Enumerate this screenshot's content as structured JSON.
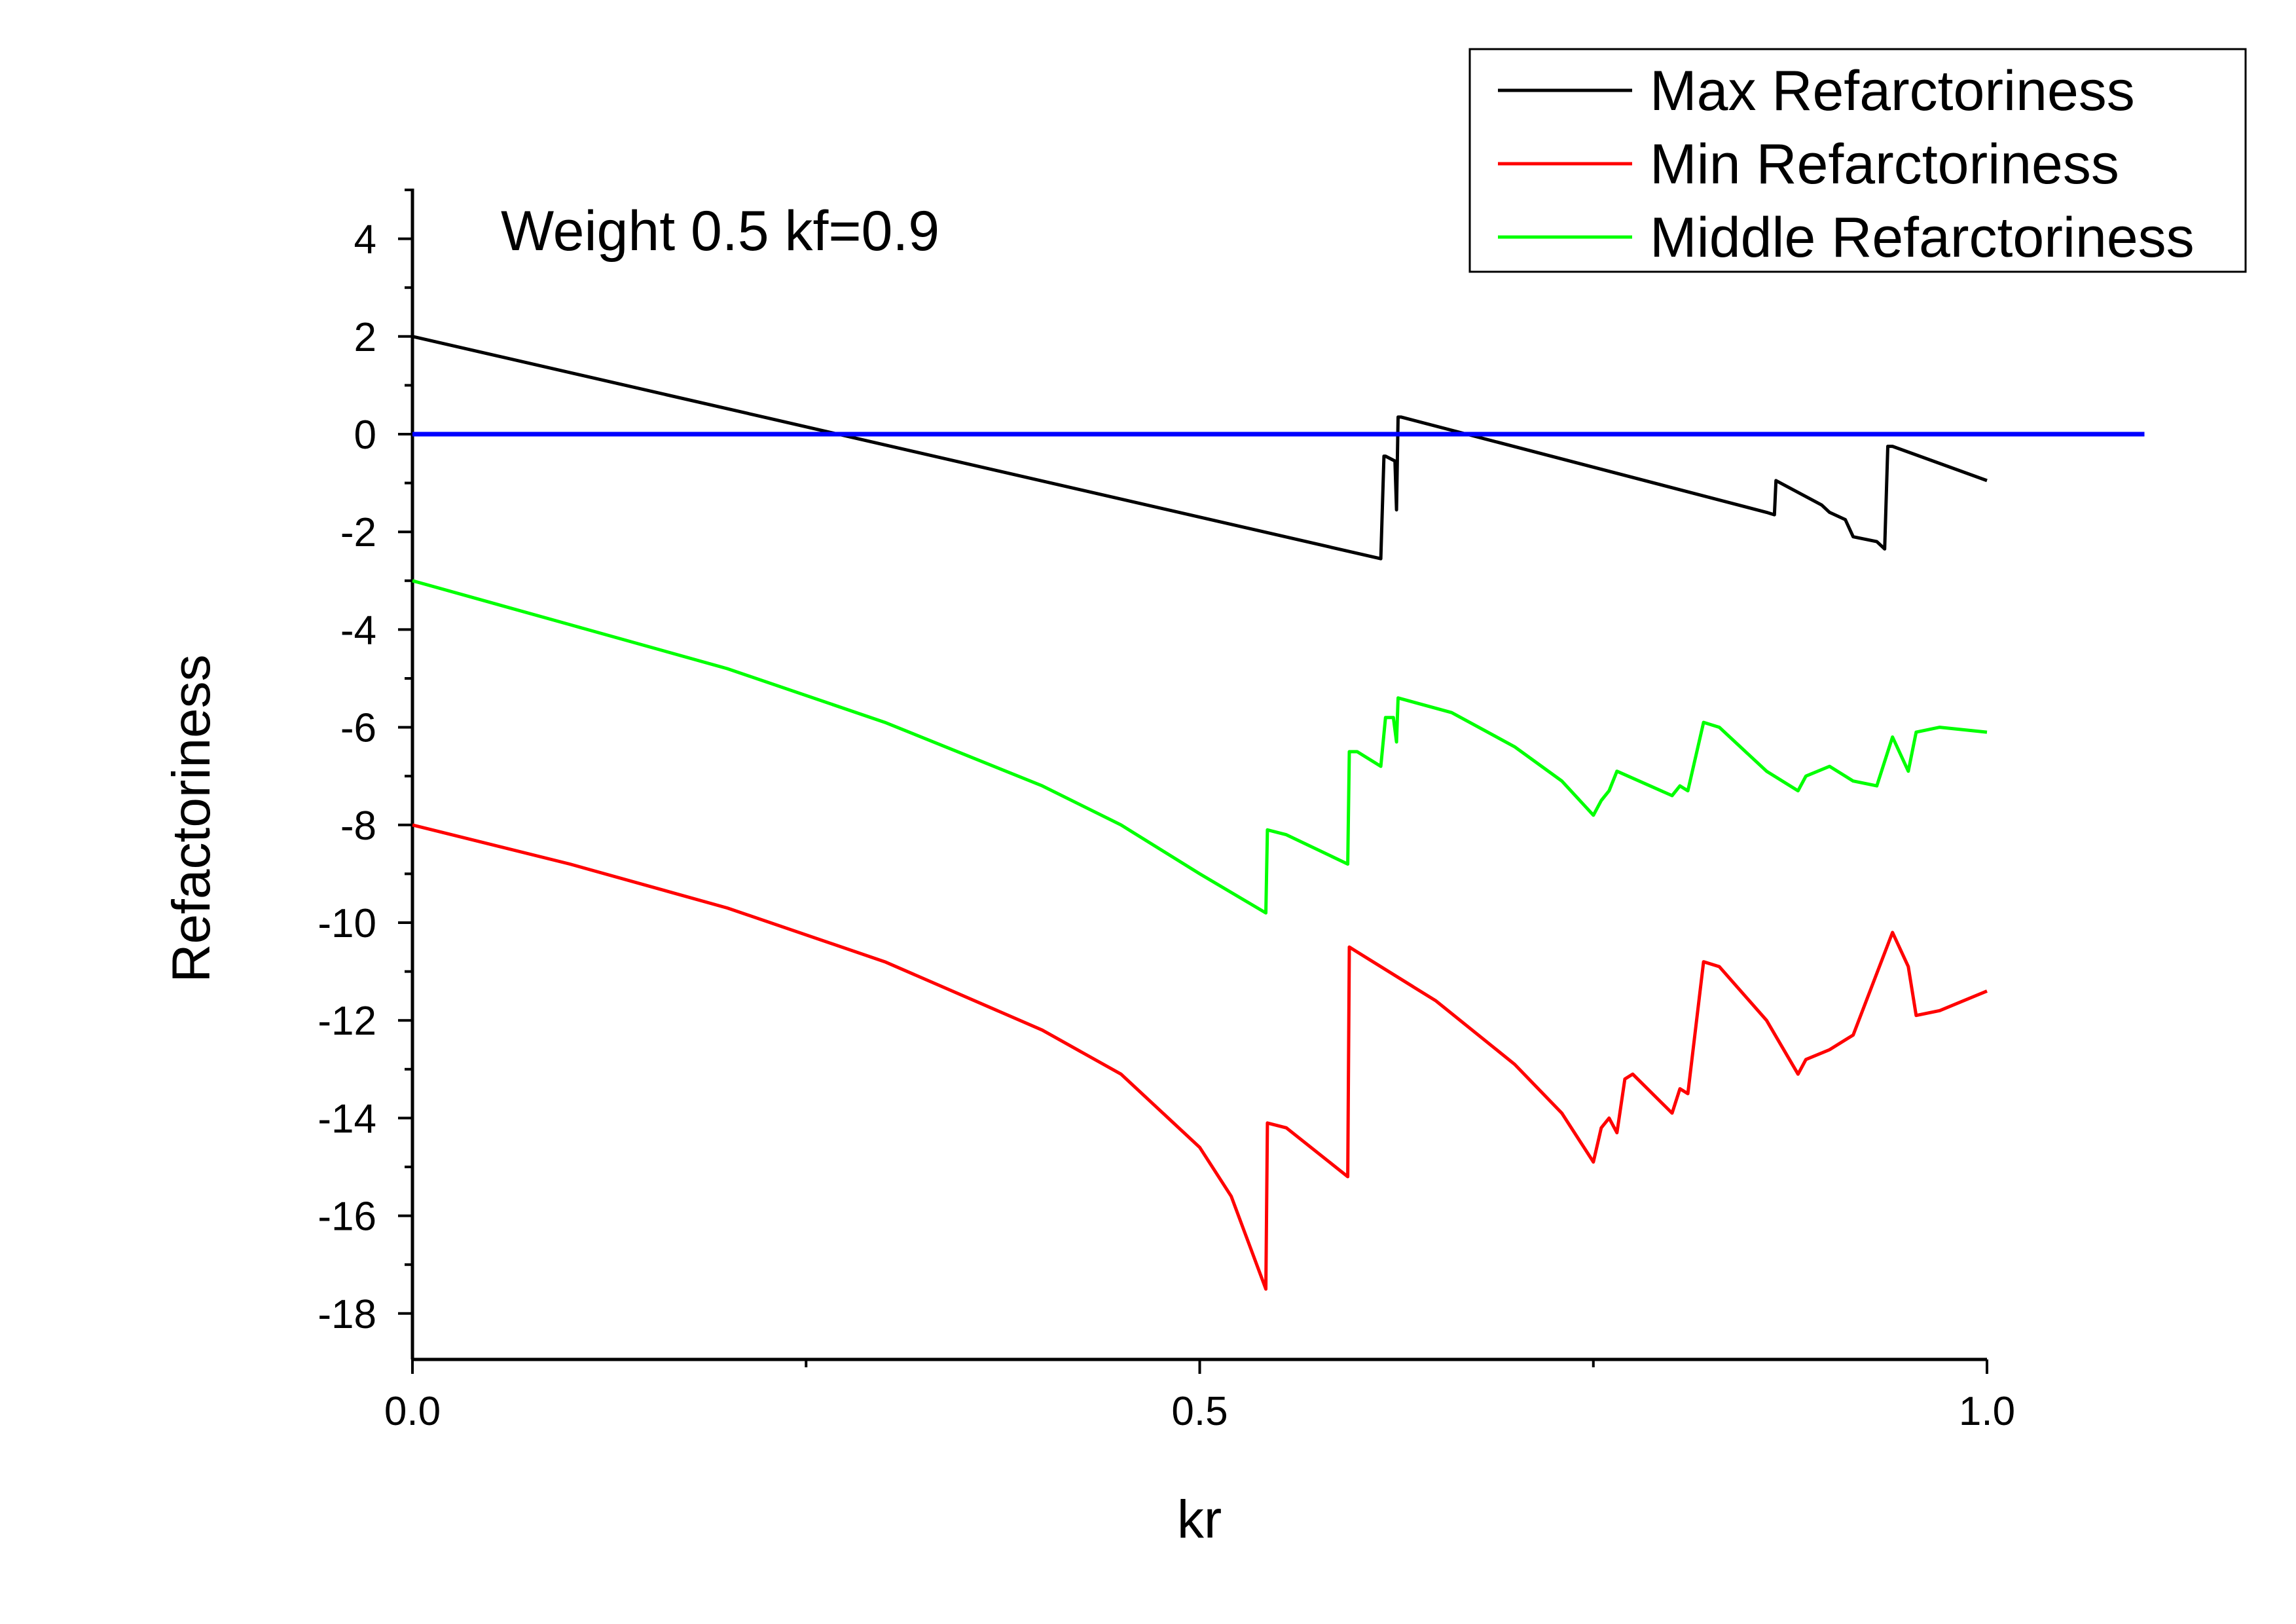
{
  "chart_data": {
    "type": "line",
    "title": "",
    "annotation": "Weight 0.5  kf=0.9",
    "xlabel": "kr",
    "ylabel": "Refactoriness",
    "xlim": [
      0.0,
      1.1
    ],
    "ylim": [
      -19,
      5
    ],
    "x_ticks": [
      "0.0",
      "0.5",
      "1.0"
    ],
    "x_tick_values": [
      0.0,
      0.5,
      1.0
    ],
    "x_minor_ticks": [
      0.25,
      0.75
    ],
    "y_ticks": [
      "4",
      "2",
      "0",
      "-2",
      "-4",
      "-6",
      "-8",
      "-10",
      "-12",
      "-14",
      "-16",
      "-18"
    ],
    "y_tick_values": [
      4,
      2,
      0,
      -2,
      -4,
      -6,
      -8,
      -10,
      -12,
      -14,
      -16,
      -18
    ],
    "grid": false,
    "legend_position": "top-right",
    "legend": [
      "Max Refarctoriness",
      "Min Refarctoriness",
      "Middle Refarctoriness"
    ],
    "series": [
      {
        "name": "Max Refarctoriness",
        "color": "#000000",
        "x": [
          0.0,
          0.615,
          0.617,
          0.618,
          0.624,
          0.625,
          0.626,
          0.627,
          0.628,
          0.86,
          0.865,
          0.866,
          0.895,
          0.9,
          0.91,
          0.915,
          0.93,
          0.935,
          0.937,
          0.94,
          1.0
        ],
        "y": [
          2.0,
          -2.55,
          -0.45,
          -0.45,
          -0.55,
          -1.55,
          0.35,
          0.35,
          0.35,
          -1.6,
          -1.65,
          -0.95,
          -1.45,
          -1.6,
          -1.75,
          -2.1,
          -2.2,
          -2.35,
          -0.25,
          -0.25,
          -0.95
        ]
      },
      {
        "name": "Min Refarctoriness",
        "color": "#ff0000",
        "x": [
          0.0,
          0.1,
          0.2,
          0.3,
          0.4,
          0.45,
          0.5,
          0.52,
          0.542,
          0.543,
          0.555,
          0.594,
          0.595,
          0.6,
          0.65,
          0.7,
          0.73,
          0.75,
          0.755,
          0.76,
          0.765,
          0.77,
          0.775,
          0.8,
          0.805,
          0.81,
          0.82,
          0.83,
          0.86,
          0.88,
          0.885,
          0.9,
          0.91,
          0.915,
          0.94,
          0.95,
          0.955,
          0.97,
          1.0
        ],
        "y": [
          -8.0,
          -8.8,
          -9.7,
          -10.8,
          -12.2,
          -13.1,
          -14.6,
          -15.6,
          -17.5,
          -14.1,
          -14.2,
          -15.2,
          -10.5,
          -10.6,
          -11.6,
          -12.9,
          -13.9,
          -14.9,
          -14.2,
          -14.0,
          -14.3,
          -13.2,
          -13.1,
          -13.9,
          -13.4,
          -13.5,
          -10.8,
          -10.9,
          -12.0,
          -13.1,
          -12.8,
          -12.6,
          -12.4,
          -12.3,
          -10.2,
          -10.9,
          -11.9,
          -11.8,
          -11.4
        ]
      },
      {
        "name": "Middle Refarctoriness",
        "color": "#00ff00",
        "x": [
          0.0,
          0.1,
          0.2,
          0.3,
          0.4,
          0.45,
          0.5,
          0.542,
          0.543,
          0.555,
          0.594,
          0.595,
          0.6,
          0.615,
          0.618,
          0.623,
          0.625,
          0.626,
          0.66,
          0.7,
          0.73,
          0.75,
          0.755,
          0.76,
          0.765,
          0.8,
          0.805,
          0.81,
          0.82,
          0.83,
          0.86,
          0.88,
          0.885,
          0.9,
          0.91,
          0.915,
          0.93,
          0.94,
          0.95,
          0.955,
          0.97,
          1.0
        ],
        "y": [
          -3.0,
          -3.9,
          -4.8,
          -5.9,
          -7.2,
          -8.0,
          -9.0,
          -9.8,
          -8.1,
          -8.2,
          -8.8,
          -6.5,
          -6.5,
          -6.8,
          -5.8,
          -5.8,
          -6.3,
          -5.4,
          -5.7,
          -6.4,
          -7.1,
          -7.8,
          -7.5,
          -7.3,
          -6.9,
          -7.4,
          -7.2,
          -7.3,
          -5.9,
          -6.0,
          -6.9,
          -7.3,
          -7.0,
          -6.8,
          -7.0,
          -7.1,
          -7.2,
          -6.2,
          -6.9,
          -6.1,
          -6.0,
          -6.1
        ]
      },
      {
        "name": "",
        "color": "#0000ff",
        "x": [
          0.0,
          1.1
        ],
        "y": [
          0.0,
          0.0
        ]
      }
    ]
  }
}
